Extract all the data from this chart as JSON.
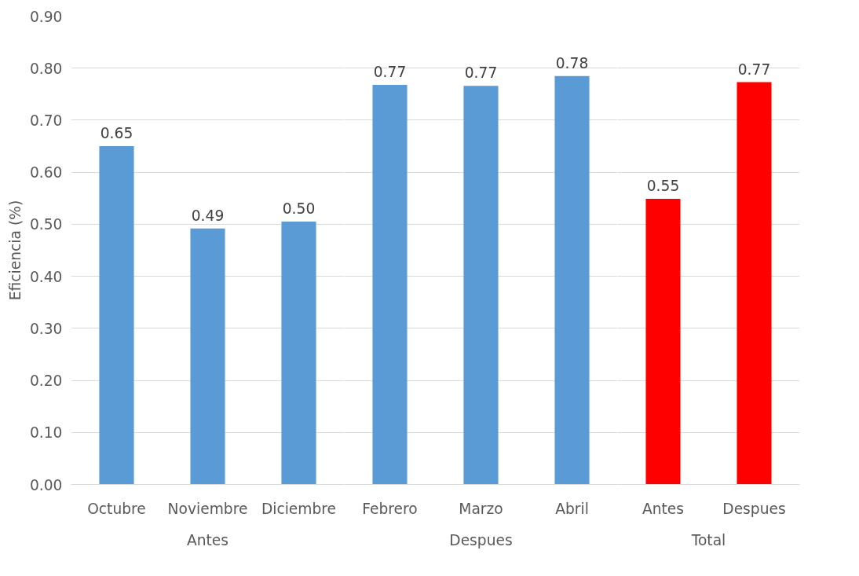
{
  "chart_data": [
    {
      "type": "bar",
      "ylabel": "Eficiencia (%)",
      "xlabel": "Antes",
      "categories": [
        "Octubre",
        "Noviembre",
        "Diciembre"
      ],
      "values": [
        0.65,
        0.492,
        0.505
      ],
      "value_labels": [
        "0.65",
        "0.49",
        "0.50"
      ],
      "colors": [
        "#5b9bd5",
        "#5b9bd5",
        "#5b9bd5"
      ],
      "ylim": [
        0,
        0.9
      ],
      "yticks": [
        {
          "value": 0,
          "label": "0.00"
        },
        {
          "value": 0.1,
          "label": "0.10"
        },
        {
          "value": 0.2,
          "label": "0.20"
        },
        {
          "value": 0.3,
          "label": "0.30"
        },
        {
          "value": 0.4,
          "label": "0.40"
        },
        {
          "value": 0.5,
          "label": "0.50"
        },
        {
          "value": 0.6,
          "label": "0.60"
        },
        {
          "value": 0.7,
          "label": "0.70"
        },
        {
          "value": 0.8,
          "label": "0.80"
        },
        {
          "value": 0.9,
          "label": "0.90"
        }
      ],
      "grid": "y"
    },
    {
      "type": "bar",
      "xlabel": "Despues",
      "categories": [
        "Febrero",
        "Marzo",
        "Abril"
      ],
      "values": [
        0.768,
        0.766,
        0.785
      ],
      "value_labels": [
        "0.77",
        "0.77",
        "0.78"
      ],
      "colors": [
        "#5b9bd5",
        "#5b9bd5",
        "#5b9bd5"
      ],
      "ylim": [
        0,
        0.9
      ],
      "grid": "y",
      "tick_labels": "x"
    },
    {
      "type": "bar",
      "xlabel": "Total",
      "categories": [
        "Antes",
        "Despues"
      ],
      "values": [
        0.549,
        0.773
      ],
      "value_labels": [
        "0.55",
        "0.77"
      ],
      "colors": [
        "#ff0000",
        "#ff0000"
      ],
      "ylim": [
        0,
        0.9
      ],
      "grid": "y",
      "tick_labels": "x"
    }
  ]
}
